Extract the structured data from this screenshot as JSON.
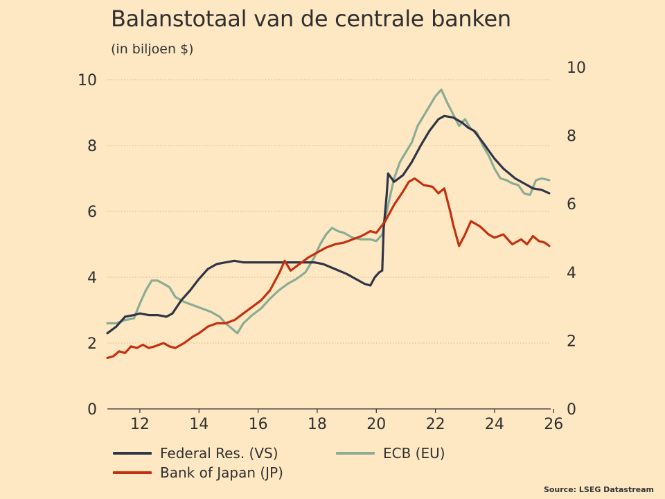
{
  "chart_data": {
    "type": "line",
    "title": "Balanstotaal van de centrale banken",
    "subtitle": "(in biljoen $)",
    "source": "Source: LSEG Datastream",
    "x_ticks": [
      "12",
      "14",
      "16",
      "18",
      "20",
      "22",
      "24",
      "26"
    ],
    "x_range": [
      2010.9,
      2025.9
    ],
    "y_left_ticks": [
      "0",
      "2",
      "4",
      "6",
      "8",
      "10"
    ],
    "y_left_range": [
      0,
      10
    ],
    "y_right_ticks": [
      "0",
      "2",
      "4",
      "6",
      "8",
      "10"
    ],
    "y_right_range": [
      0,
      10
    ],
    "grid": "horizontal dotted",
    "legend": "bottom",
    "series": [
      {
        "name": "Federal Res. (VS)",
        "color": "#2f3446",
        "points": [
          [
            2010.9,
            2.3
          ],
          [
            2011.2,
            2.5
          ],
          [
            2011.5,
            2.8
          ],
          [
            2011.8,
            2.85
          ],
          [
            2012.0,
            2.9
          ],
          [
            2012.3,
            2.85
          ],
          [
            2012.6,
            2.85
          ],
          [
            2012.9,
            2.8
          ],
          [
            2013.1,
            2.9
          ],
          [
            2013.4,
            3.3
          ],
          [
            2013.7,
            3.6
          ],
          [
            2014.0,
            3.95
          ],
          [
            2014.3,
            4.25
          ],
          [
            2014.6,
            4.4
          ],
          [
            2014.9,
            4.45
          ],
          [
            2015.2,
            4.5
          ],
          [
            2015.5,
            4.45
          ],
          [
            2015.8,
            4.45
          ],
          [
            2016.0,
            4.45
          ],
          [
            2016.5,
            4.45
          ],
          [
            2017.0,
            4.45
          ],
          [
            2017.5,
            4.45
          ],
          [
            2017.9,
            4.45
          ],
          [
            2018.2,
            4.4
          ],
          [
            2018.6,
            4.25
          ],
          [
            2019.0,
            4.1
          ],
          [
            2019.3,
            3.95
          ],
          [
            2019.6,
            3.8
          ],
          [
            2019.8,
            3.75
          ],
          [
            2019.95,
            4.0
          ],
          [
            2020.1,
            4.15
          ],
          [
            2020.2,
            4.2
          ],
          [
            2020.25,
            5.5
          ],
          [
            2020.35,
            6.5
          ],
          [
            2020.4,
            7.15
          ],
          [
            2020.6,
            6.9
          ],
          [
            2020.9,
            7.1
          ],
          [
            2021.2,
            7.5
          ],
          [
            2021.5,
            8.0
          ],
          [
            2021.8,
            8.45
          ],
          [
            2022.1,
            8.8
          ],
          [
            2022.3,
            8.9
          ],
          [
            2022.6,
            8.85
          ],
          [
            2022.9,
            8.7
          ],
          [
            2023.1,
            8.55
          ],
          [
            2023.3,
            8.45
          ],
          [
            2023.6,
            8.1
          ],
          [
            2024.0,
            7.6
          ],
          [
            2024.3,
            7.3
          ],
          [
            2024.7,
            7.0
          ],
          [
            2025.0,
            6.85
          ],
          [
            2025.3,
            6.7
          ],
          [
            2025.6,
            6.65
          ],
          [
            2025.85,
            6.55
          ]
        ]
      },
      {
        "name": "Bank of Japan (JP)",
        "color": "#c2300f",
        "points": [
          [
            2010.9,
            1.55
          ],
          [
            2011.1,
            1.6
          ],
          [
            2011.3,
            1.75
          ],
          [
            2011.5,
            1.7
          ],
          [
            2011.7,
            1.9
          ],
          [
            2011.9,
            1.85
          ],
          [
            2012.1,
            1.95
          ],
          [
            2012.3,
            1.85
          ],
          [
            2012.5,
            1.9
          ],
          [
            2012.8,
            2.0
          ],
          [
            2013.0,
            1.9
          ],
          [
            2013.2,
            1.85
          ],
          [
            2013.5,
            2.0
          ],
          [
            2013.8,
            2.2
          ],
          [
            2014.0,
            2.3
          ],
          [
            2014.3,
            2.5
          ],
          [
            2014.6,
            2.6
          ],
          [
            2014.9,
            2.6
          ],
          [
            2015.2,
            2.7
          ],
          [
            2015.5,
            2.9
          ],
          [
            2015.8,
            3.1
          ],
          [
            2016.1,
            3.3
          ],
          [
            2016.4,
            3.6
          ],
          [
            2016.7,
            4.1
          ],
          [
            2016.9,
            4.5
          ],
          [
            2017.1,
            4.2
          ],
          [
            2017.4,
            4.4
          ],
          [
            2017.7,
            4.6
          ],
          [
            2018.0,
            4.75
          ],
          [
            2018.3,
            4.9
          ],
          [
            2018.6,
            5.0
          ],
          [
            2018.9,
            5.05
          ],
          [
            2019.2,
            5.15
          ],
          [
            2019.5,
            5.25
          ],
          [
            2019.8,
            5.4
          ],
          [
            2020.0,
            5.35
          ],
          [
            2020.3,
            5.7
          ],
          [
            2020.6,
            6.2
          ],
          [
            2020.9,
            6.6
          ],
          [
            2021.1,
            6.9
          ],
          [
            2021.3,
            7.0
          ],
          [
            2021.6,
            6.8
          ],
          [
            2021.9,
            6.75
          ],
          [
            2022.1,
            6.55
          ],
          [
            2022.3,
            6.7
          ],
          [
            2022.5,
            6.0
          ],
          [
            2022.6,
            5.6
          ],
          [
            2022.8,
            4.95
          ],
          [
            2023.0,
            5.3
          ],
          [
            2023.2,
            5.7
          ],
          [
            2023.5,
            5.55
          ],
          [
            2023.8,
            5.3
          ],
          [
            2024.0,
            5.2
          ],
          [
            2024.3,
            5.3
          ],
          [
            2024.6,
            5.0
          ],
          [
            2024.9,
            5.15
          ],
          [
            2025.1,
            5.0
          ],
          [
            2025.3,
            5.25
          ],
          [
            2025.5,
            5.1
          ],
          [
            2025.7,
            5.05
          ],
          [
            2025.85,
            4.95
          ]
        ]
      },
      {
        "name": "ECB (EU)",
        "color": "#8aac94",
        "points": [
          [
            2010.9,
            2.6
          ],
          [
            2011.2,
            2.6
          ],
          [
            2011.5,
            2.7
          ],
          [
            2011.8,
            2.75
          ],
          [
            2012.0,
            3.2
          ],
          [
            2012.2,
            3.6
          ],
          [
            2012.4,
            3.9
          ],
          [
            2012.6,
            3.9
          ],
          [
            2012.8,
            3.8
          ],
          [
            2013.0,
            3.7
          ],
          [
            2013.2,
            3.4
          ],
          [
            2013.5,
            3.25
          ],
          [
            2013.8,
            3.15
          ],
          [
            2014.1,
            3.05
          ],
          [
            2014.4,
            2.95
          ],
          [
            2014.7,
            2.8
          ],
          [
            2014.9,
            2.6
          ],
          [
            2015.1,
            2.45
          ],
          [
            2015.3,
            2.3
          ],
          [
            2015.5,
            2.6
          ],
          [
            2015.8,
            2.85
          ],
          [
            2016.1,
            3.05
          ],
          [
            2016.4,
            3.35
          ],
          [
            2016.7,
            3.6
          ],
          [
            2017.0,
            3.8
          ],
          [
            2017.3,
            3.95
          ],
          [
            2017.6,
            4.15
          ],
          [
            2017.9,
            4.6
          ],
          [
            2018.1,
            5.0
          ],
          [
            2018.3,
            5.3
          ],
          [
            2018.5,
            5.5
          ],
          [
            2018.7,
            5.4
          ],
          [
            2018.9,
            5.35
          ],
          [
            2019.2,
            5.2
          ],
          [
            2019.5,
            5.15
          ],
          [
            2019.8,
            5.15
          ],
          [
            2020.0,
            5.1
          ],
          [
            2020.2,
            5.3
          ],
          [
            2020.4,
            6.2
          ],
          [
            2020.6,
            7.0
          ],
          [
            2020.8,
            7.5
          ],
          [
            2021.0,
            7.8
          ],
          [
            2021.2,
            8.1
          ],
          [
            2021.4,
            8.6
          ],
          [
            2021.6,
            8.9
          ],
          [
            2021.8,
            9.2
          ],
          [
            2022.0,
            9.5
          ],
          [
            2022.2,
            9.7
          ],
          [
            2022.4,
            9.3
          ],
          [
            2022.6,
            8.95
          ],
          [
            2022.8,
            8.6
          ],
          [
            2023.0,
            8.8
          ],
          [
            2023.2,
            8.5
          ],
          [
            2023.4,
            8.4
          ],
          [
            2023.6,
            8.0
          ],
          [
            2023.8,
            7.7
          ],
          [
            2024.0,
            7.3
          ],
          [
            2024.2,
            7.0
          ],
          [
            2024.4,
            6.95
          ],
          [
            2024.6,
            6.85
          ],
          [
            2024.8,
            6.8
          ],
          [
            2025.0,
            6.55
          ],
          [
            2025.2,
            6.5
          ],
          [
            2025.4,
            6.95
          ],
          [
            2025.6,
            7.0
          ],
          [
            2025.85,
            6.95
          ]
        ]
      }
    ]
  }
}
